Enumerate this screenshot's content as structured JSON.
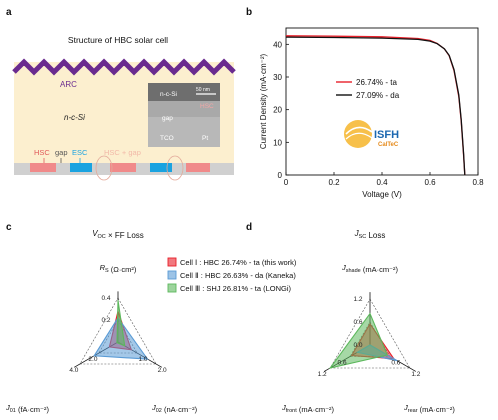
{
  "panels": {
    "a": {
      "letter": "a",
      "title": "Structure of HBC solar cell",
      "arc": "ARC",
      "bulk": "n-c-Si",
      "hsc": "HSC",
      "gap": "gap",
      "esc": "ESC",
      "hsc_gap": "HSC + gap",
      "inset_ncsi": "n-c-Si",
      "inset_hsc": "HSC",
      "inset_gap": "gap",
      "inset_tco": "TCO",
      "inset_pt": "Pt",
      "scalebar": "50 nm"
    },
    "b": {
      "letter": "b"
    },
    "c": {
      "letter": "c"
    },
    "d": {
      "letter": "d"
    }
  },
  "logo": {
    "main": "ISFH",
    "sub": "CalTeC"
  },
  "colors": {
    "zigzag": "#6a2b8f",
    "bulk": "#fcefcf",
    "hsc": "#f08a8a",
    "esc": "#1aa3e0",
    "cell1": "#e8202a",
    "cell2": "#5a9bd5",
    "cell3": "#5cb85c"
  },
  "chart_data": [
    {
      "type": "line",
      "xlabel": "Voltage (V)",
      "ylabel": "Current Density (mA·cm⁻²)",
      "xlim": [
        0,
        0.8
      ],
      "ylim": [
        0,
        45
      ],
      "xticks": [
        "0",
        "0.2",
        "0.4",
        "0.6",
        "0.8"
      ],
      "yticks": [
        "0",
        "10",
        "20",
        "30",
        "40"
      ],
      "legend_position": "center",
      "series": [
        {
          "name": "26.74% - ta",
          "color": "#e8202a",
          "x": [
            0,
            0.2,
            0.4,
            0.55,
            0.6,
            0.63,
            0.66,
            0.68,
            0.7,
            0.72,
            0.73,
            0.74,
            0.745
          ],
          "y": [
            42.6,
            42.5,
            42.3,
            41.8,
            41.2,
            40.3,
            38.6,
            36.5,
            32.0,
            24.0,
            16.5,
            6.0,
            0
          ]
        },
        {
          "name": "27.09% - da",
          "color": "#111111",
          "x": [
            0,
            0.2,
            0.4,
            0.55,
            0.6,
            0.63,
            0.66,
            0.68,
            0.7,
            0.72,
            0.73,
            0.74,
            0.745
          ],
          "y": [
            42.2,
            42.1,
            41.9,
            41.5,
            41.0,
            40.2,
            38.6,
            36.6,
            32.3,
            24.5,
            17.0,
            6.5,
            0
          ]
        }
      ]
    },
    {
      "type": "radar",
      "title": "V_OC × FF Loss",
      "axes": [
        {
          "label": "R_S (Ω·cm²)",
          "ticks": [
            "0.2",
            "0.4"
          ],
          "max": 0.4
        },
        {
          "label": "J_02 (nA·cm⁻²)",
          "ticks": [
            "1.0",
            "2.0"
          ],
          "max": 2.0
        },
        {
          "label": "J_01 (fA·cm⁻²)",
          "ticks": [
            "2.0",
            "4.0"
          ],
          "max": 4.0
        }
      ],
      "legend_position": "top-right",
      "series": [
        {
          "name": "Cell Ⅰ : HBC 26.74% - ta (this work)",
          "color": "#e8202a",
          "values": [
            0.28,
            0.7,
            0.9
          ]
        },
        {
          "name": "Cell Ⅱ : HBC 26.63% - da (Kaneka)",
          "color": "#5a9bd5",
          "values": [
            0.22,
            1.55,
            2.5
          ]
        },
        {
          "name": "Cell Ⅲ : SHJ 26.81% - ta (LONGi)",
          "color": "#5cb85c",
          "values": [
            0.38,
            0.35,
            0.1
          ]
        }
      ]
    },
    {
      "type": "radar",
      "title": "J_SC Loss",
      "axes": [
        {
          "label": "J_shade (mA·cm⁻²)",
          "ticks": [
            "0.0",
            "0.6",
            "1.2"
          ],
          "max": 1.2
        },
        {
          "label": "J_rear (mA·cm⁻²)",
          "ticks": [
            "0.6",
            "1.2"
          ],
          "max": 1.2
        },
        {
          "label": "J_front (mA·cm⁻²)",
          "ticks": [
            "0.6",
            "1.2"
          ],
          "max": 1.2
        }
      ],
      "series": [
        {
          "name": "Cell Ⅰ",
          "color": "#e8202a",
          "values": [
            0.55,
            0.72,
            0.55
          ]
        },
        {
          "name": "Cell Ⅱ",
          "color": "#5a9bd5",
          "values": [
            0.0,
            0.82,
            0.38
          ]
        },
        {
          "name": "Cell Ⅲ",
          "color": "#5cb85c",
          "values": [
            0.82,
            0.52,
            1.2
          ]
        }
      ]
    }
  ]
}
